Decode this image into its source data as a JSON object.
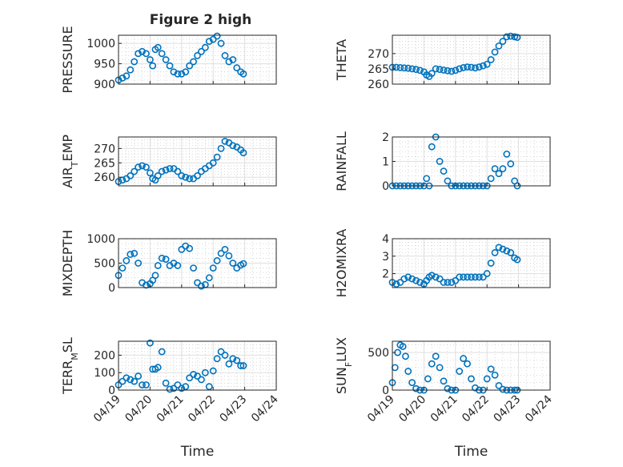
{
  "figure": {
    "title": "Figure 2 high",
    "marker_color": "#0072BD"
  },
  "chart_data": [
    {
      "type": "scatter",
      "ylabel": "PRESSURE",
      "title": "Figure 2 high",
      "xlim": [
        "04/19",
        "04/24"
      ],
      "xtick_labels": [],
      "ylim": [
        900,
        1020
      ],
      "yticks": [
        900,
        950,
        1000
      ],
      "grid": true,
      "x": [
        "04/19 00:00",
        "04/19 03:00",
        "04/19 06:00",
        "04/19 09:00",
        "04/19 12:00",
        "04/19 15:00",
        "04/19 18:00",
        "04/19 21:00",
        "04/20 00:00",
        "04/20 02:00",
        "04/20 04:00",
        "04/20 06:00",
        "04/20 09:00",
        "04/20 12:00",
        "04/20 15:00",
        "04/20 18:00",
        "04/20 21:00",
        "04/21 00:00",
        "04/21 03:00",
        "04/21 06:00",
        "04/21 09:00",
        "04/21 12:00",
        "04/21 15:00",
        "04/21 18:00",
        "04/21 21:00",
        "04/22 00:00",
        "04/22 03:00",
        "04/22 06:00",
        "04/22 09:00",
        "04/22 12:00",
        "04/22 15:00",
        "04/22 18:00",
        "04/22 21:00",
        "04/22 23:00"
      ],
      "y": [
        910,
        915,
        920,
        935,
        955,
        975,
        980,
        975,
        960,
        945,
        985,
        990,
        975,
        960,
        945,
        930,
        925,
        925,
        930,
        945,
        955,
        970,
        980,
        990,
        1005,
        1010,
        1018,
        1000,
        970,
        955,
        960,
        940,
        930,
        925
      ]
    },
    {
      "type": "scatter",
      "ylabel": "THETA",
      "xlim": [
        "04/19",
        "04/24"
      ],
      "xtick_labels": [],
      "ylim": [
        260,
        276
      ],
      "yticks": [
        260,
        265,
        270
      ],
      "grid": true,
      "x": [
        "04/19 00:00",
        "04/19 03:00",
        "04/19 06:00",
        "04/19 09:00",
        "04/19 12:00",
        "04/19 15:00",
        "04/19 18:00",
        "04/19 21:00",
        "04/20 00:00",
        "04/20 02:00",
        "04/20 04:00",
        "04/20 06:00",
        "04/20 09:00",
        "04/20 12:00",
        "04/20 15:00",
        "04/20 18:00",
        "04/20 21:00",
        "04/21 00:00",
        "04/21 03:00",
        "04/21 06:00",
        "04/21 09:00",
        "04/21 12:00",
        "04/21 15:00",
        "04/21 18:00",
        "04/21 21:00",
        "04/22 00:00",
        "04/22 03:00",
        "04/22 06:00",
        "04/22 09:00",
        "04/22 12:00",
        "04/22 15:00",
        "04/22 18:00",
        "04/22 21:00",
        "04/22 23:00"
      ],
      "y": [
        265.5,
        265.5,
        265.4,
        265.3,
        265.2,
        265.0,
        264.8,
        264.5,
        264.0,
        263.0,
        262.5,
        263.5,
        265.0,
        264.8,
        264.6,
        264.4,
        264.2,
        264.5,
        265.0,
        265.4,
        265.6,
        265.5,
        265.3,
        265.6,
        266.0,
        266.5,
        268.0,
        270.5,
        272.5,
        274.0,
        275.5,
        275.7,
        275.5,
        275.3
      ]
    },
    {
      "type": "scatter",
      "ylabel": "AIR_TEMP",
      "xlim": [
        "04/19",
        "04/24"
      ],
      "xtick_labels": [],
      "ylim": [
        257,
        274
      ],
      "yticks": [
        260,
        265,
        270
      ],
      "grid": true,
      "x": [
        "04/19 00:00",
        "04/19 03:00",
        "04/19 06:00",
        "04/19 09:00",
        "04/19 12:00",
        "04/19 15:00",
        "04/19 18:00",
        "04/19 21:00",
        "04/20 00:00",
        "04/20 02:00",
        "04/20 04:00",
        "04/20 06:00",
        "04/20 09:00",
        "04/20 12:00",
        "04/20 15:00",
        "04/20 18:00",
        "04/20 21:00",
        "04/21 00:00",
        "04/21 03:00",
        "04/21 06:00",
        "04/21 09:00",
        "04/21 12:00",
        "04/21 15:00",
        "04/21 18:00",
        "04/21 21:00",
        "04/22 00:00",
        "04/22 03:00",
        "04/22 06:00",
        "04/22 09:00",
        "04/22 12:00",
        "04/22 15:00",
        "04/22 18:00",
        "04/22 21:00",
        "04/22 23:00"
      ],
      "y": [
        258.5,
        259.0,
        259.5,
        260.5,
        262.0,
        263.5,
        264.0,
        263.5,
        261.5,
        259.5,
        259.0,
        260.5,
        262.0,
        262.5,
        263.0,
        263.0,
        262.0,
        260.5,
        260.0,
        259.5,
        259.5,
        260.5,
        262.0,
        263.0,
        264.0,
        265.0,
        267.0,
        270.0,
        272.5,
        272.0,
        271.0,
        270.5,
        269.5,
        268.5
      ]
    },
    {
      "type": "scatter",
      "ylabel": "RAINFALL",
      "xlim": [
        "04/19",
        "04/24"
      ],
      "xtick_labels": [],
      "ylim": [
        0,
        2
      ],
      "yticks": [
        0,
        1,
        2
      ],
      "grid": true,
      "x": [
        "04/19 00:00",
        "04/19 03:00",
        "04/19 06:00",
        "04/19 09:00",
        "04/19 12:00",
        "04/19 15:00",
        "04/19 18:00",
        "04/19 21:00",
        "04/20 00:00",
        "04/20 02:00",
        "04/20 04:00",
        "04/20 06:00",
        "04/20 09:00",
        "04/20 12:00",
        "04/20 15:00",
        "04/20 18:00",
        "04/20 21:00",
        "04/21 00:00",
        "04/21 03:00",
        "04/21 06:00",
        "04/21 09:00",
        "04/21 12:00",
        "04/21 15:00",
        "04/21 18:00",
        "04/21 21:00",
        "04/22 00:00",
        "04/22 03:00",
        "04/22 06:00",
        "04/22 09:00",
        "04/22 12:00",
        "04/22 15:00",
        "04/22 18:00",
        "04/22 21:00",
        "04/22 23:00"
      ],
      "y": [
        0,
        0,
        0,
        0,
        0,
        0,
        0,
        0,
        0,
        0.3,
        0,
        1.6,
        2.0,
        1.0,
        0.6,
        0.2,
        0,
        0,
        0,
        0,
        0,
        0,
        0,
        0,
        0,
        0,
        0.3,
        0.7,
        0.5,
        0.7,
        1.3,
        0.9,
        0.2,
        0
      ]
    },
    {
      "type": "scatter",
      "ylabel": "MIXDEPTH",
      "xlim": [
        "04/19",
        "04/24"
      ],
      "xtick_labels": [],
      "ylim": [
        0,
        1000
      ],
      "yticks": [
        0,
        500,
        1000
      ],
      "grid": true,
      "x": [
        "04/19 00:00",
        "04/19 03:00",
        "04/19 06:00",
        "04/19 09:00",
        "04/19 12:00",
        "04/19 15:00",
        "04/19 18:00",
        "04/19 21:00",
        "04/20 00:00",
        "04/20 02:00",
        "04/20 04:00",
        "04/20 06:00",
        "04/20 09:00",
        "04/20 12:00",
        "04/20 15:00",
        "04/20 18:00",
        "04/20 21:00",
        "04/21 00:00",
        "04/21 03:00",
        "04/21 06:00",
        "04/21 09:00",
        "04/21 12:00",
        "04/21 15:00",
        "04/21 18:00",
        "04/21 21:00",
        "04/22 00:00",
        "04/22 03:00",
        "04/22 06:00",
        "04/22 09:00",
        "04/22 12:00",
        "04/22 15:00",
        "04/22 18:00",
        "04/22 21:00",
        "04/22 23:00"
      ],
      "y": [
        250,
        400,
        550,
        680,
        700,
        500,
        100,
        50,
        80,
        150,
        250,
        450,
        600,
        580,
        450,
        500,
        450,
        780,
        850,
        800,
        400,
        100,
        30,
        60,
        200,
        400,
        550,
        700,
        780,
        650,
        500,
        400,
        460,
        490
      ]
    },
    {
      "type": "scatter",
      "ylabel": "H2OMIXRA",
      "xlim": [
        "04/19",
        "04/24"
      ],
      "xtick_labels": [],
      "ylim": [
        1.2,
        4
      ],
      "yticks": [
        2,
        3,
        4
      ],
      "grid": true,
      "x": [
        "04/19 00:00",
        "04/19 03:00",
        "04/19 06:00",
        "04/19 09:00",
        "04/19 12:00",
        "04/19 15:00",
        "04/19 18:00",
        "04/19 21:00",
        "04/20 00:00",
        "04/20 02:00",
        "04/20 04:00",
        "04/20 06:00",
        "04/20 09:00",
        "04/20 12:00",
        "04/20 15:00",
        "04/20 18:00",
        "04/20 21:00",
        "04/21 00:00",
        "04/21 03:00",
        "04/21 06:00",
        "04/21 09:00",
        "04/21 12:00",
        "04/21 15:00",
        "04/21 18:00",
        "04/21 21:00",
        "04/22 00:00",
        "04/22 03:00",
        "04/22 06:00",
        "04/22 09:00",
        "04/22 12:00",
        "04/22 15:00",
        "04/22 18:00",
        "04/22 21:00",
        "04/22 23:00"
      ],
      "y": [
        1.5,
        1.4,
        1.5,
        1.7,
        1.8,
        1.7,
        1.6,
        1.5,
        1.4,
        1.6,
        1.8,
        1.9,
        1.8,
        1.7,
        1.5,
        1.5,
        1.5,
        1.6,
        1.8,
        1.8,
        1.8,
        1.8,
        1.8,
        1.8,
        1.8,
        2.0,
        2.6,
        3.2,
        3.5,
        3.4,
        3.3,
        3.2,
        2.9,
        2.8
      ]
    },
    {
      "type": "scatter",
      "ylabel": "TERR_MSL",
      "xlim": [
        "04/19",
        "04/24"
      ],
      "xtick_labels": [
        "04/19",
        "04/20",
        "04/21",
        "04/22",
        "04/23",
        "04/24"
      ],
      "xlabel": "Time",
      "ylim": [
        0,
        280
      ],
      "yticks": [
        0,
        100,
        200
      ],
      "grid": true,
      "x": [
        "04/19 00:00",
        "04/19 03:00",
        "04/19 06:00",
        "04/19 09:00",
        "04/19 12:00",
        "04/19 15:00",
        "04/19 18:00",
        "04/19 21:00",
        "04/20 00:00",
        "04/20 02:00",
        "04/20 04:00",
        "04/20 06:00",
        "04/20 09:00",
        "04/20 12:00",
        "04/20 15:00",
        "04/20 18:00",
        "04/20 21:00",
        "04/21 00:00",
        "04/21 03:00",
        "04/21 06:00",
        "04/21 09:00",
        "04/21 12:00",
        "04/21 15:00",
        "04/21 18:00",
        "04/21 21:00",
        "04/22 00:00",
        "04/22 03:00",
        "04/22 06:00",
        "04/22 09:00",
        "04/22 12:00",
        "04/22 15:00",
        "04/22 18:00",
        "04/22 21:00",
        "04/22 23:00"
      ],
      "y": [
        30,
        50,
        70,
        60,
        50,
        80,
        30,
        30,
        270,
        120,
        120,
        130,
        220,
        40,
        5,
        10,
        30,
        10,
        20,
        70,
        90,
        80,
        60,
        100,
        20,
        110,
        180,
        220,
        200,
        150,
        180,
        170,
        140,
        140
      ]
    },
    {
      "type": "scatter",
      "ylabel": "SUN_FLUX",
      "xlim": [
        "04/19",
        "04/24"
      ],
      "xtick_labels": [
        "04/19",
        "04/20",
        "04/21",
        "04/22",
        "04/23",
        "04/24"
      ],
      "xlabel": "Time",
      "ylim": [
        0,
        650
      ],
      "yticks": [
        0,
        500
      ],
      "grid": true,
      "x": [
        "04/19 00:00",
        "04/19 02:00",
        "04/19 04:00",
        "04/19 06:00",
        "04/19 08:00",
        "04/19 10:00",
        "04/19 12:00",
        "04/19 15:00",
        "04/19 18:00",
        "04/19 21:00",
        "04/20 00:00",
        "04/20 03:00",
        "04/20 06:00",
        "04/20 09:00",
        "04/20 12:00",
        "04/20 15:00",
        "04/20 18:00",
        "04/20 21:00",
        "04/21 00:00",
        "04/21 03:00",
        "04/21 06:00",
        "04/21 09:00",
        "04/21 12:00",
        "04/21 15:00",
        "04/21 18:00",
        "04/21 21:00",
        "04/22 00:00",
        "04/22 03:00",
        "04/22 06:00",
        "04/22 09:00",
        "04/22 12:00",
        "04/22 15:00",
        "04/22 18:00",
        "04/22 21:00",
        "04/22 23:00"
      ],
      "y": [
        100,
        300,
        500,
        600,
        580,
        450,
        250,
        100,
        20,
        0,
        0,
        150,
        350,
        450,
        300,
        120,
        20,
        0,
        0,
        250,
        420,
        350,
        150,
        30,
        0,
        0,
        150,
        280,
        200,
        60,
        10,
        0,
        0,
        0,
        0
      ]
    }
  ]
}
